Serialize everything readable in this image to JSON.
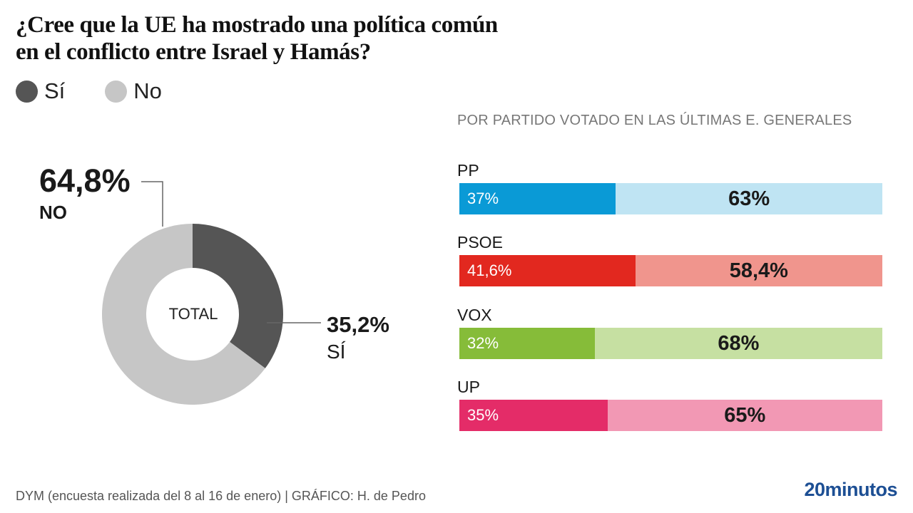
{
  "title_line1": "¿Cree que la UE ha mostrado una política común",
  "title_line2": "en el conflicto entre Israel y Hamás?",
  "legend": [
    {
      "label": "Sí",
      "color": "#555555"
    },
    {
      "label": "No",
      "color": "#c6c6c6"
    }
  ],
  "donut": {
    "center_label": "TOTAL",
    "no_value": "64,8%",
    "no_label": "NO",
    "si_value": "35,2%",
    "si_label": "SÍ"
  },
  "subtitle": "POR PARTIDO VOTADO EN LAS ÚLTIMAS E. GENERALES",
  "bars": [
    {
      "party": "PP",
      "si": "37%",
      "no": "63%",
      "si_color": "#0a9ad6",
      "no_color": "#bfe4f3"
    },
    {
      "party": "PSOE",
      "si": "41,6%",
      "no": "58,4%",
      "si_color": "#e2281f",
      "no_color": "#f0958d"
    },
    {
      "party": "VOX",
      "si": "32%",
      "no": "68%",
      "si_color": "#86bc39",
      "no_color": "#c6e0a2"
    },
    {
      "party": "UP",
      "si": "35%",
      "no": "65%",
      "si_color": "#e42c68",
      "no_color": "#f298b4"
    }
  ],
  "footer": "DYM (encuesta realizada del 8 al 16 de enero)  |  GRÁFICO: H. de Pedro",
  "logo": "20minutos",
  "chart_data": [
    {
      "type": "pie",
      "title": "TOTAL",
      "categories": [
        "Sí",
        "No"
      ],
      "values": [
        35.2,
        64.8
      ],
      "colors": [
        "#555555",
        "#c6c6c6"
      ],
      "labels": [
        "35,2% SÍ",
        "64,8% NO"
      ]
    },
    {
      "type": "bar",
      "orientation": "horizontal-stacked",
      "title": "POR PARTIDO VOTADO EN LAS ÚLTIMAS E. GENERALES",
      "categories": [
        "PP",
        "PSOE",
        "VOX",
        "UP"
      ],
      "series": [
        {
          "name": "Sí",
          "values": [
            37,
            41.6,
            32,
            35
          ]
        },
        {
          "name": "No",
          "values": [
            63,
            58.4,
            68,
            65
          ]
        }
      ],
      "xlim": [
        0,
        100
      ],
      "legend": "top-left"
    }
  ]
}
